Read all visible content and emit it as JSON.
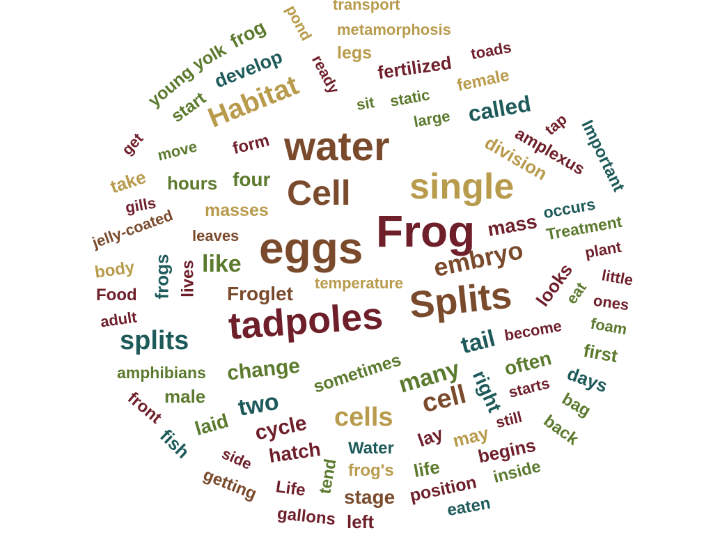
{
  "words": {
    "transport": "transport",
    "pond": "pond",
    "metamorphosis": "metamorphosis",
    "legs": "legs",
    "toads": "toads",
    "frog": "frog",
    "yolk": "yolk",
    "young": "young",
    "ready": "ready",
    "fertilized": "fertilized",
    "develop": "develop",
    "female": "female",
    "start": "start",
    "Habitat": "Habitat",
    "sit": "sit",
    "static": "static",
    "called": "called",
    "large": "large",
    "tap": "tap",
    "get": "get",
    "move": "move",
    "form": "form",
    "water": "water",
    "division": "division",
    "amplexus": "amplexus",
    "Important": "Important",
    "take": "take",
    "hours": "hours",
    "four": "four",
    "Cell": "Cell",
    "single": "single",
    "gills": "gills",
    "masses": "masses",
    "occurs": "occurs",
    "jelly-coated": "jelly-coated",
    "mass": "mass",
    "Treatment": "Treatment",
    "leaves": "leaves",
    "eggs": "eggs",
    "Frog": "Frog",
    "plant": "plant",
    "body": "body",
    "frogs": "frogs",
    "lives": "lives",
    "like": "like",
    "embryo": "embryo",
    "little": "little",
    "looks": "looks",
    "Food": "Food",
    "Froglet": "Froglet",
    "temperature": "temperature",
    "eat": "eat",
    "ones": "ones",
    "adult": "adult",
    "Splits": "Splits",
    "foam": "foam",
    "tadpoles": "tadpoles",
    "splits": "splits",
    "become": "become",
    "tail": "tail",
    "first": "first",
    "amphibians": "amphibians",
    "change": "change",
    "sometimes": "sometimes",
    "often": "often",
    "many": "many",
    "right": "right",
    "days": "days",
    "male": "male",
    "front": "front",
    "two": "two",
    "cell": "cell",
    "starts": "starts",
    "bag": "bag",
    "laid": "laid",
    "cycle": "cycle",
    "cells": "cells",
    "fish": "fish",
    "still": "still",
    "lay": "lay",
    "may": "may",
    "back": "back",
    "hatch": "hatch",
    "side": "side",
    "Water": "Water",
    "begins": "begins",
    "tend": "tend",
    "frogs_poss": "frog's",
    "life": "life",
    "getting": "getting",
    "inside": "inside",
    "Life": "Life",
    "position": "position",
    "stage": "stage",
    "eaten": "eaten",
    "gallons": "gallons",
    "left": "left"
  },
  "colors": {
    "brown": "#7a4a2c",
    "maroon": "#6e1f2a",
    "gold": "#b89b4c",
    "olive": "#5c7a2e",
    "teal": "#1f5a5a"
  }
}
